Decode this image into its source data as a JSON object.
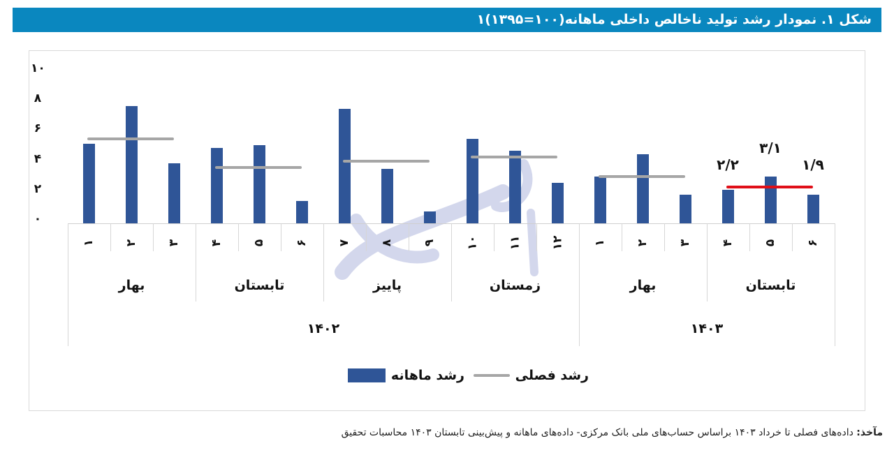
{
  "figure": {
    "title": "شکل ۱. نمودار رشد تولید ناخالص داخلی ماهانه(۱۰۰=۱۳۹۵)۱",
    "source_label": "مآخذ:",
    "source_text": " داده‌های فصلی تا خرداد ۱۴۰۳ براساس حساب‌های ملی بانک مرکزی- داده‌های ماهانه و پیش‌بینی تابستان ۱۴۰۳ محاسبات تحقیق"
  },
  "colors": {
    "title_bar": "#0a87bf",
    "bar": "#2f5597",
    "seasonal_line": "#a6a6a6",
    "forecast_line": "#e00f18"
  },
  "legend": {
    "monthly": "رشد ماهانه",
    "seasonal": "رشد فصلی"
  },
  "y_ticks": [
    "۱۰",
    "۸",
    "۶",
    "۴",
    "۲",
    "۰"
  ],
  "month_labels": [
    "۱",
    "۲",
    "۳",
    "۴",
    "۵",
    "۶",
    "۷",
    "۸",
    "۹",
    "۱۰",
    "۱۱",
    "۱۲",
    "۱",
    "۲",
    "۳",
    "۴",
    "۵",
    "۶"
  ],
  "season_labels": [
    "بهار",
    "تابستان",
    "پاییز",
    "زمستان",
    "بهار",
    "تابستان"
  ],
  "year_labels": [
    "۱۴۰۲",
    "۱۴۰۳"
  ],
  "data_labels": [
    "۲/۲",
    "۳/۱",
    "۱/۹"
  ],
  "chart_data": {
    "type": "bar",
    "title": "شکل ۱. نمودار رشد تولید ناخالص داخلی ماهانه(۱۰۰=۱۳۹۵)",
    "xlabel": "",
    "ylabel": "",
    "ylim": [
      0,
      10
    ],
    "yticks": [
      0,
      2,
      4,
      6,
      8,
      10
    ],
    "grid": false,
    "legend_position": "bottom",
    "categories": [
      "1402-بهار-1",
      "1402-بهار-2",
      "1402-بهار-3",
      "1402-تابستان-4",
      "1402-تابستان-5",
      "1402-تابستان-6",
      "1402-پاییز-7",
      "1402-پاییز-8",
      "1402-پاییز-9",
      "1402-زمستان-10",
      "1402-زمستان-11",
      "1402-زمستان-12",
      "1403-بهار-1",
      "1403-بهار-2",
      "1403-بهار-3",
      "1403-تابستان-4",
      "1403-تابستان-5",
      "1403-تابستان-6"
    ],
    "series": [
      {
        "name": "رشد ماهانه",
        "type": "bar",
        "values": [
          5.3,
          7.8,
          4.0,
          5.0,
          5.2,
          1.5,
          7.6,
          3.6,
          0.8,
          5.6,
          4.8,
          2.7,
          3.1,
          4.6,
          1.9,
          2.2,
          3.1,
          1.9
        ]
      },
      {
        "name": "رشد فصلی",
        "type": "line-per-season",
        "seasons": [
          "1402-بهار",
          "1402-تابستان",
          "1402-پاییز",
          "1402-زمستان",
          "1403-بهار",
          "1403-تابستان"
        ],
        "values": [
          5.6,
          3.7,
          4.1,
          4.4,
          3.1,
          2.4
        ],
        "note": "last season (1403 تابستان) is a forecast drawn in red"
      }
    ],
    "annotations": [
      {
        "category_index": 15,
        "text": "۲/۲"
      },
      {
        "category_index": 16,
        "text": "۳/۱"
      },
      {
        "category_index": 17,
        "text": "۱/۹"
      }
    ],
    "x_groups": {
      "seasons": [
        "بهار",
        "تابستان",
        "پاییز",
        "زمستان",
        "بهار",
        "تابستان"
      ],
      "years": [
        "۱۴۰۲",
        "۱۴۰۳"
      ]
    }
  }
}
